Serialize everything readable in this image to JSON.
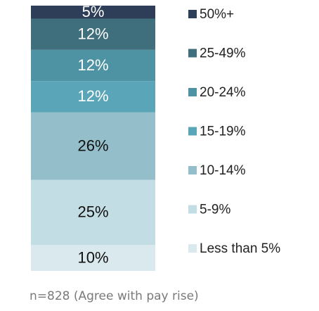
{
  "chart_data": {
    "type": "stacked_bar",
    "series": [
      {
        "name": "Less than 5%",
        "color": "#d9e9ee",
        "values": [
          10
        ],
        "value_labels": [
          "10%"
        ]
      },
      {
        "name": "5-9%",
        "color": "#c3dde4",
        "values": [
          25
        ],
        "value_labels": [
          "25%"
        ]
      },
      {
        "name": "10-14%",
        "color": "#94bfca",
        "values": [
          26
        ],
        "value_labels": [
          "26%"
        ]
      },
      {
        "name": "15-19%",
        "color": "#5aa6b8",
        "values": [
          12
        ],
        "value_labels": [
          "12%"
        ]
      },
      {
        "name": "20-24%",
        "color": "#4e93a3",
        "values": [
          12
        ],
        "value_labels": [
          "12%"
        ]
      },
      {
        "name": "25-49%",
        "color": "#3f6e7c",
        "values": [
          12
        ],
        "value_labels": [
          "12%"
        ]
      },
      {
        "name": "50%+",
        "color": "#2e3d58",
        "values": [
          5
        ],
        "value_labels": [
          "5%"
        ]
      }
    ],
    "note": "n=828 (Agree with pay rise)",
    "legend": "right"
  }
}
